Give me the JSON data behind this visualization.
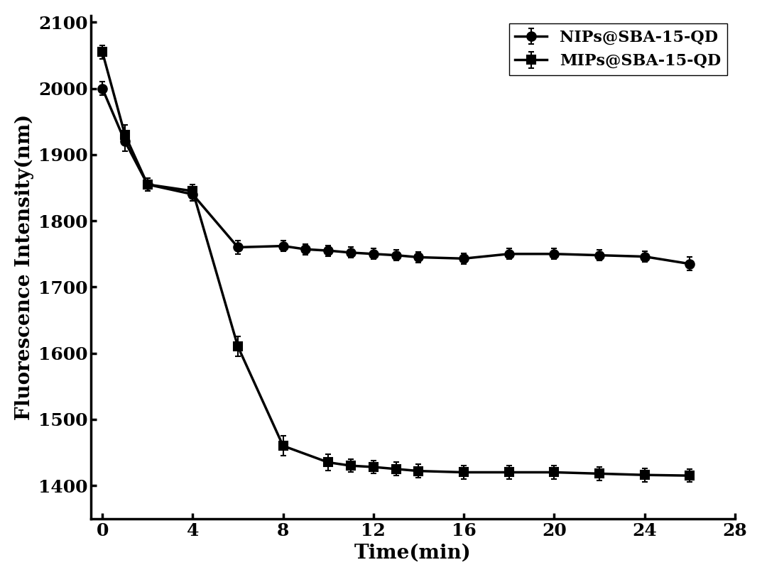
{
  "NIPs_x": [
    0,
    1,
    2,
    4,
    6,
    8,
    9,
    10,
    11,
    12,
    13,
    14,
    16,
    18,
    20,
    22,
    24,
    26
  ],
  "NIPs_y": [
    2000,
    1920,
    1855,
    1840,
    1760,
    1762,
    1757,
    1755,
    1752,
    1750,
    1748,
    1745,
    1743,
    1750,
    1750,
    1748,
    1746,
    1735
  ],
  "NIPs_err": [
    10,
    15,
    10,
    10,
    10,
    8,
    8,
    8,
    8,
    8,
    8,
    8,
    8,
    8,
    8,
    8,
    8,
    10
  ],
  "MIPs_x": [
    0,
    1,
    2,
    4,
    6,
    8,
    10,
    11,
    12,
    13,
    14,
    16,
    18,
    20,
    22,
    24,
    26
  ],
  "MIPs_y": [
    2055,
    1930,
    1855,
    1845,
    1610,
    1460,
    1435,
    1430,
    1428,
    1425,
    1422,
    1420,
    1420,
    1420,
    1418,
    1416,
    1415
  ],
  "MIPs_err": [
    10,
    15,
    10,
    10,
    15,
    15,
    12,
    10,
    10,
    10,
    10,
    10,
    10,
    10,
    10,
    10,
    10
  ],
  "xlabel": "Time(min)",
  "ylabel": "Fluorescence Intensity(nm)",
  "xlim": [
    -0.5,
    28
  ],
  "ylim": [
    1350,
    2110
  ],
  "xticks": [
    0,
    4,
    8,
    12,
    16,
    20,
    24,
    28
  ],
  "yticks": [
    1400,
    1500,
    1600,
    1700,
    1800,
    1900,
    2000,
    2100
  ],
  "legend_NIPs": "NIPs@SBA-15-QD",
  "legend_MIPs": "MIPs@SBA-15-QD",
  "line_color": "#000000",
  "bg_color": "#ffffff",
  "label_fontsize": 20,
  "tick_fontsize": 18,
  "legend_fontsize": 16
}
